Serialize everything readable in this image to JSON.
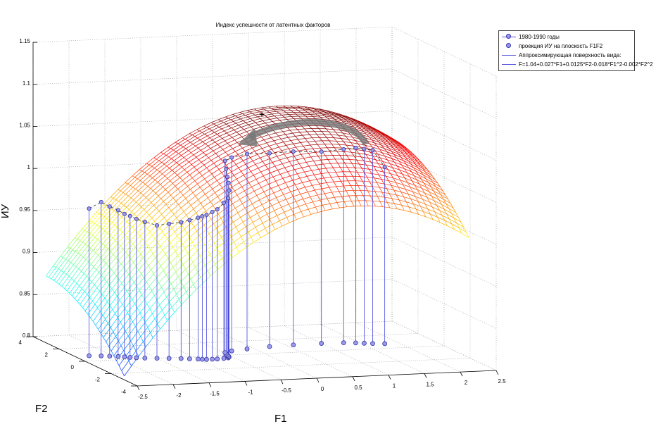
{
  "chart_data": {
    "type": "surface3d",
    "title": "Индекс успешности от латентных факторов",
    "xlabel": "F1",
    "ylabel": "F2",
    "zlabel": "ИУ",
    "xlim": [
      -2.5,
      2.5
    ],
    "ylim": [
      -4,
      4
    ],
    "zlim": [
      0.8,
      1.15
    ],
    "xticks": [
      "-2.5",
      "-2",
      "-1.5",
      "-1",
      "-0.5",
      "0",
      "0.5",
      "1",
      "1.5",
      "2",
      "2.5"
    ],
    "yticks": [
      "-4",
      "-2",
      "0",
      "2",
      "4"
    ],
    "zticks": [
      "0.8",
      "0.85",
      "0.9",
      "0.95",
      "1",
      "1.05",
      "1.1",
      "1.15"
    ],
    "grid": true,
    "legend_position": "top-right",
    "legend": [
      "1980-1990 годы",
      "проекция ИУ на плоскость F1F2",
      "Аппроксимирующая поверхность вида:",
      "F=1.04+0.027*F1+0.0125*F2-0.018*F1^2-0.002*F2^2"
    ],
    "surface": {
      "formula": "F=1.04+0.027*F1+0.0125*F2-0.018*F1^2-0.002*F2^2",
      "c0": 1.04,
      "c1": 0.027,
      "c2": 0.0125,
      "c11": -0.018,
      "c22": -0.002,
      "f1_range": [
        -2.5,
        2.3
      ],
      "f2_range": [
        -3,
        3
      ],
      "colormap": "jet"
    },
    "series": [
      {
        "name": "1980-1990 годы",
        "points": [
          [
            -2.3,
            0.8,
            0.975
          ],
          [
            -2.15,
            0.7,
            0.983
          ],
          [
            -2.05,
            0.6,
            0.978
          ],
          [
            -1.95,
            0.5,
            0.974
          ],
          [
            -1.88,
            0.4,
            0.97
          ],
          [
            -1.82,
            0.3,
            0.968
          ],
          [
            -1.75,
            0.2,
            0.965
          ],
          [
            -1.65,
            0.1,
            0.962
          ],
          [
            -1.5,
            0.0,
            0.958
          ],
          [
            -1.35,
            -0.1,
            0.96
          ],
          [
            -1.2,
            -0.2,
            0.962
          ],
          [
            -1.1,
            -0.3,
            0.965
          ],
          [
            -1.0,
            -0.4,
            0.968
          ],
          [
            -0.95,
            -0.45,
            0.97
          ],
          [
            -0.9,
            -0.5,
            0.972
          ],
          [
            -0.82,
            -0.5,
            0.975
          ],
          [
            -0.75,
            -0.5,
            0.978
          ],
          [
            -0.65,
            -0.45,
            0.985
          ],
          [
            -0.58,
            -0.4,
            0.99
          ],
          [
            -0.55,
            -0.3,
            0.998
          ],
          [
            -0.53,
            -0.15,
            1.006
          ],
          [
            -0.52,
            0.0,
            1.012
          ],
          [
            -0.5,
            0.2,
            1.02
          ],
          [
            -0.48,
            0.4,
            1.028
          ],
          [
            -0.35,
            0.6,
            1.03
          ],
          [
            -0.1,
            0.8,
            1.032
          ],
          [
            0.25,
            1.0,
            1.03
          ],
          [
            0.6,
            1.1,
            1.03
          ],
          [
            1.0,
            1.15,
            1.028
          ],
          [
            1.3,
            1.1,
            1.03
          ],
          [
            1.45,
            1.0,
            1.032
          ],
          [
            1.55,
            0.9,
            1.031
          ],
          [
            1.65,
            0.8,
            1.03
          ],
          [
            1.8,
            0.7,
            1.01
          ]
        ]
      }
    ]
  }
}
